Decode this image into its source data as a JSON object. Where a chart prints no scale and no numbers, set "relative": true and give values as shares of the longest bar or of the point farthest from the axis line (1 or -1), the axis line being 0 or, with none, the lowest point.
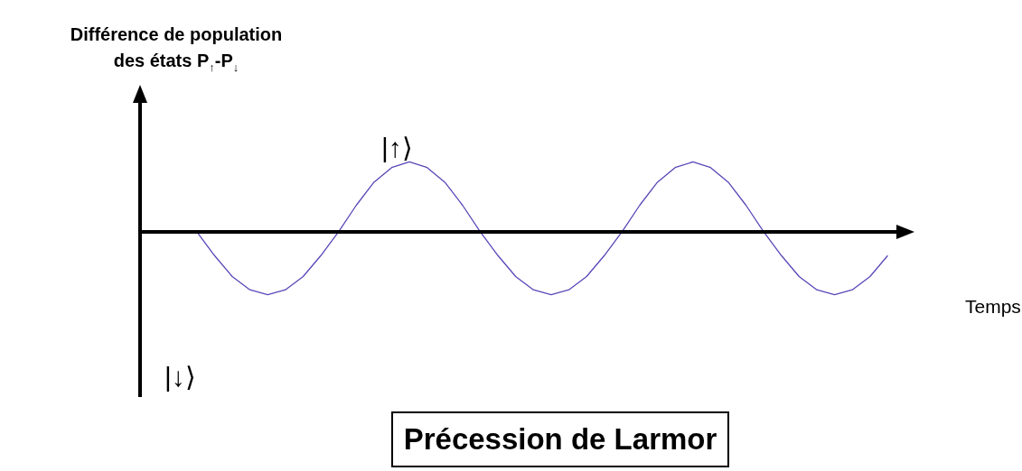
{
  "chart_data": {
    "type": "line",
    "relative": true,
    "tick_labels": false,
    "title": "Précession de Larmor",
    "ylabel": "Différence de population des états P$_{↑}$-P$_{↓}$",
    "xlabel": "Temps",
    "annotations": [
      "|↑⟩",
      "|↓⟩"
    ],
    "categories": [
      null,
      null,
      null,
      null,
      null,
      null,
      null,
      null,
      null,
      null,
      null,
      null,
      null,
      null,
      null,
      null,
      null,
      null,
      null,
      null,
      null,
      null,
      null,
      null,
      null,
      null,
      null,
      null,
      null,
      null,
      null,
      null,
      null,
      null,
      null,
      null,
      null,
      null,
      null,
      null,
      null,
      null,
      null,
      null
    ],
    "series": [
      {
        "color": "#5a46b8",
        "values": [
          null,
          null,
          null,
          0,
          -0.34,
          -0.64,
          -0.83,
          -0.9,
          -0.83,
          -0.64,
          -0.34,
          0,
          0.38,
          0.71,
          0.92,
          1,
          0.92,
          0.71,
          0.38,
          0,
          -0.34,
          -0.64,
          -0.83,
          -0.9,
          -0.83,
          -0.64,
          -0.34,
          0,
          0.38,
          0.71,
          0.92,
          1,
          0.92,
          0.71,
          0.38,
          0,
          -0.34,
          -0.64,
          -0.83,
          -0.9,
          -0.83,
          -0.64,
          -0.34,
          null
        ]
      }
    ]
  }
}
